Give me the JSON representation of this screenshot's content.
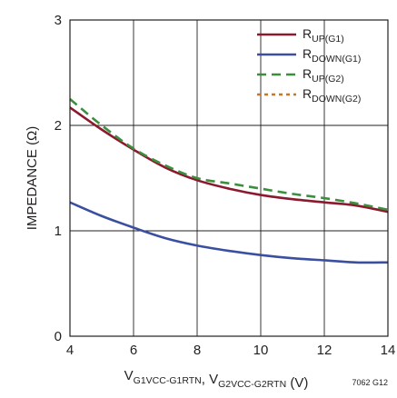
{
  "chart_data": {
    "type": "line",
    "title": "",
    "xlabel": {
      "parts": [
        {
          "main": "V",
          "sub": "G1VCC-G1RTN"
        },
        {
          "main": ", V",
          "sub": "G2VCC-G2RTN"
        },
        {
          "main": " (V)",
          "sub": ""
        }
      ]
    },
    "ylabel": "IMPEDANCE (Ω)",
    "xlim": [
      4,
      14
    ],
    "ylim": [
      0,
      3
    ],
    "xticks": [
      "4",
      "6",
      "8",
      "10",
      "12",
      "14"
    ],
    "yticks": [
      "0",
      "1",
      "2",
      "3"
    ],
    "grid": true,
    "legend_position": "top-right",
    "figure_code": "7062 G12",
    "series": [
      {
        "name": "RUP(G1)",
        "label_main": "R",
        "label_sub": "UP(G1)",
        "color": "#8b1a2e",
        "style": "solid",
        "x": [
          4,
          5,
          6,
          7,
          8,
          9,
          10,
          11,
          12,
          13,
          14
        ],
        "y": [
          2.17,
          1.96,
          1.77,
          1.6,
          1.48,
          1.4,
          1.34,
          1.3,
          1.27,
          1.24,
          1.18
        ]
      },
      {
        "name": "RDOWN(G1)",
        "label_main": "R",
        "label_sub": "DOWN(G1)",
        "color": "#3a4fa0",
        "style": "solid",
        "x": [
          4,
          5,
          6,
          7,
          8,
          9,
          10,
          11,
          12,
          13,
          14
        ],
        "y": [
          1.27,
          1.14,
          1.03,
          0.93,
          0.86,
          0.81,
          0.77,
          0.74,
          0.72,
          0.7,
          0.7
        ]
      },
      {
        "name": "RUP(G2)",
        "label_main": "R",
        "label_sub": "UP(G2)",
        "color": "#3b8f3e",
        "style": "dashed",
        "x": [
          4,
          5,
          6,
          7,
          8,
          9,
          10,
          11,
          12,
          13,
          14
        ],
        "y": [
          2.25,
          2.0,
          1.78,
          1.62,
          1.5,
          1.45,
          1.4,
          1.35,
          1.31,
          1.26,
          1.2
        ]
      },
      {
        "name": "RDOWN(G2)",
        "label_main": "R",
        "label_sub": "DOWN(G2)",
        "color": "#c8772a",
        "style": "dotted",
        "x": [],
        "y": []
      }
    ]
  }
}
